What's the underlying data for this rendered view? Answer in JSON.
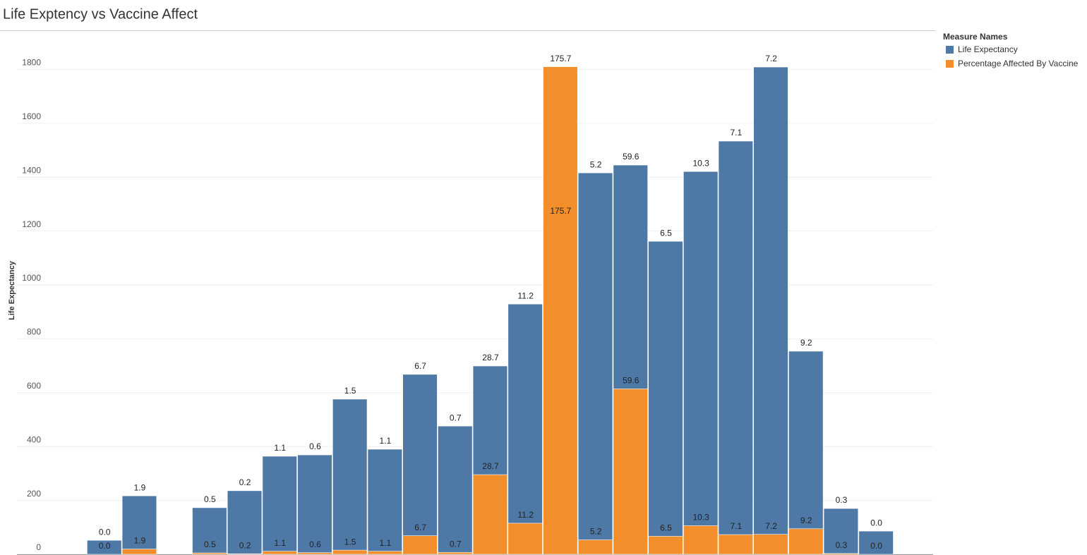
{
  "chart_data": {
    "type": "bar",
    "title": "Life Exptency vs Vaccine Affect",
    "y_label": "Life Expectancy",
    "legend_title": "Measure Names",
    "categories": [
      null,
      null,
      null,
      null,
      null,
      null,
      null,
      null,
      null,
      null,
      null,
      null,
      null,
      null,
      null,
      null,
      null,
      null,
      null,
      null,
      null,
      null,
      null,
      null,
      null,
      null
    ],
    "series": [
      {
        "name": "Life Expectancy",
        "color": "#4e79a7",
        "values": [
          null,
          null,
          52,
          217,
          null,
          173,
          236,
          364,
          369,
          576,
          390,
          668,
          476,
          699,
          929,
          1800,
          1416,
          1445,
          1162,
          1421,
          1534,
          1809,
          754,
          170,
          86,
          null
        ]
      },
      {
        "name": "Percentage Affected By Vaccine",
        "color": "#f28e2b",
        "axis": "y2",
        "values": [
          null,
          null,
          0,
          1.9,
          null,
          0.5,
          0.2,
          1.1,
          0.6,
          1.5,
          1.1,
          6.7,
          0.7,
          28.7,
          11.2,
          175.7,
          5.2,
          59.6,
          6.5,
          10.3,
          7.1,
          7.2,
          9.2,
          0.3,
          0,
          null
        ],
        "value_labels": [
          null,
          null,
          "0.0",
          "1.9",
          null,
          "0.5",
          "0.2",
          "1.1",
          "0.6",
          "1.5",
          "1.1",
          "6.7",
          "0.7",
          "28.7",
          "11.2",
          "175.7",
          "5.2",
          "59.6",
          "6.5",
          "10.3",
          "7.1",
          "7.2",
          "9.2",
          "0.3",
          "0.0",
          null
        ]
      }
    ],
    "ylim": [
      0,
      1940
    ],
    "yticks": [
      0,
      200,
      400,
      600,
      800,
      1000,
      1200,
      1400,
      1600,
      1800
    ],
    "y2lim": [
      0,
      188.3
    ],
    "grid": true,
    "legend": "right"
  }
}
